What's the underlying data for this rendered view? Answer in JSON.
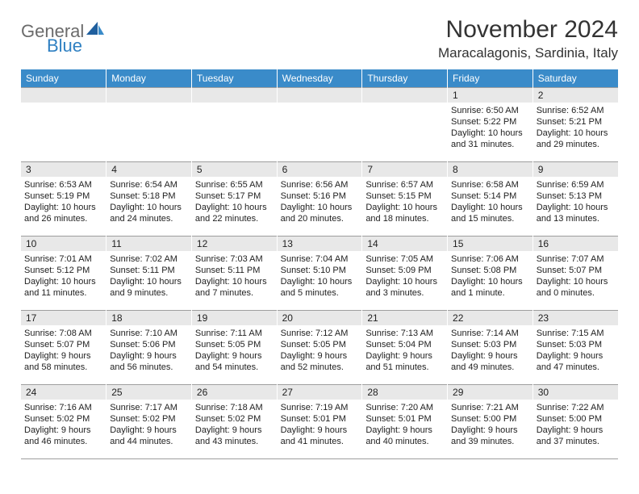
{
  "brand": {
    "text_gray": "General",
    "text_blue": "Blue"
  },
  "title": "November 2024",
  "location": "Maracalagonis, Sardinia, Italy",
  "colors": {
    "header_bg": "#3a8bc9",
    "header_text": "#ffffff",
    "daynum_bg": "#e8e8e8",
    "rule": "#9e9e9e",
    "body_text": "#222222",
    "logo_gray": "#6b6b6b",
    "logo_blue": "#2f80c2"
  },
  "weekdays": [
    "Sunday",
    "Monday",
    "Tuesday",
    "Wednesday",
    "Thursday",
    "Friday",
    "Saturday"
  ],
  "weeks": [
    [
      {
        "day": "",
        "lines": []
      },
      {
        "day": "",
        "lines": []
      },
      {
        "day": "",
        "lines": []
      },
      {
        "day": "",
        "lines": []
      },
      {
        "day": "",
        "lines": []
      },
      {
        "day": "1",
        "lines": [
          "Sunrise: 6:50 AM",
          "Sunset: 5:22 PM",
          "Daylight: 10 hours and 31 minutes."
        ]
      },
      {
        "day": "2",
        "lines": [
          "Sunrise: 6:52 AM",
          "Sunset: 5:21 PM",
          "Daylight: 10 hours and 29 minutes."
        ]
      }
    ],
    [
      {
        "day": "3",
        "lines": [
          "Sunrise: 6:53 AM",
          "Sunset: 5:19 PM",
          "Daylight: 10 hours and 26 minutes."
        ]
      },
      {
        "day": "4",
        "lines": [
          "Sunrise: 6:54 AM",
          "Sunset: 5:18 PM",
          "Daylight: 10 hours and 24 minutes."
        ]
      },
      {
        "day": "5",
        "lines": [
          "Sunrise: 6:55 AM",
          "Sunset: 5:17 PM",
          "Daylight: 10 hours and 22 minutes."
        ]
      },
      {
        "day": "6",
        "lines": [
          "Sunrise: 6:56 AM",
          "Sunset: 5:16 PM",
          "Daylight: 10 hours and 20 minutes."
        ]
      },
      {
        "day": "7",
        "lines": [
          "Sunrise: 6:57 AM",
          "Sunset: 5:15 PM",
          "Daylight: 10 hours and 18 minutes."
        ]
      },
      {
        "day": "8",
        "lines": [
          "Sunrise: 6:58 AM",
          "Sunset: 5:14 PM",
          "Daylight: 10 hours and 15 minutes."
        ]
      },
      {
        "day": "9",
        "lines": [
          "Sunrise: 6:59 AM",
          "Sunset: 5:13 PM",
          "Daylight: 10 hours and 13 minutes."
        ]
      }
    ],
    [
      {
        "day": "10",
        "lines": [
          "Sunrise: 7:01 AM",
          "Sunset: 5:12 PM",
          "Daylight: 10 hours and 11 minutes."
        ]
      },
      {
        "day": "11",
        "lines": [
          "Sunrise: 7:02 AM",
          "Sunset: 5:11 PM",
          "Daylight: 10 hours and 9 minutes."
        ]
      },
      {
        "day": "12",
        "lines": [
          "Sunrise: 7:03 AM",
          "Sunset: 5:11 PM",
          "Daylight: 10 hours and 7 minutes."
        ]
      },
      {
        "day": "13",
        "lines": [
          "Sunrise: 7:04 AM",
          "Sunset: 5:10 PM",
          "Daylight: 10 hours and 5 minutes."
        ]
      },
      {
        "day": "14",
        "lines": [
          "Sunrise: 7:05 AM",
          "Sunset: 5:09 PM",
          "Daylight: 10 hours and 3 minutes."
        ]
      },
      {
        "day": "15",
        "lines": [
          "Sunrise: 7:06 AM",
          "Sunset: 5:08 PM",
          "Daylight: 10 hours and 1 minute."
        ]
      },
      {
        "day": "16",
        "lines": [
          "Sunrise: 7:07 AM",
          "Sunset: 5:07 PM",
          "Daylight: 10 hours and 0 minutes."
        ]
      }
    ],
    [
      {
        "day": "17",
        "lines": [
          "Sunrise: 7:08 AM",
          "Sunset: 5:07 PM",
          "Daylight: 9 hours and 58 minutes."
        ]
      },
      {
        "day": "18",
        "lines": [
          "Sunrise: 7:10 AM",
          "Sunset: 5:06 PM",
          "Daylight: 9 hours and 56 minutes."
        ]
      },
      {
        "day": "19",
        "lines": [
          "Sunrise: 7:11 AM",
          "Sunset: 5:05 PM",
          "Daylight: 9 hours and 54 minutes."
        ]
      },
      {
        "day": "20",
        "lines": [
          "Sunrise: 7:12 AM",
          "Sunset: 5:05 PM",
          "Daylight: 9 hours and 52 minutes."
        ]
      },
      {
        "day": "21",
        "lines": [
          "Sunrise: 7:13 AM",
          "Sunset: 5:04 PM",
          "Daylight: 9 hours and 51 minutes."
        ]
      },
      {
        "day": "22",
        "lines": [
          "Sunrise: 7:14 AM",
          "Sunset: 5:03 PM",
          "Daylight: 9 hours and 49 minutes."
        ]
      },
      {
        "day": "23",
        "lines": [
          "Sunrise: 7:15 AM",
          "Sunset: 5:03 PM",
          "Daylight: 9 hours and 47 minutes."
        ]
      }
    ],
    [
      {
        "day": "24",
        "lines": [
          "Sunrise: 7:16 AM",
          "Sunset: 5:02 PM",
          "Daylight: 9 hours and 46 minutes."
        ]
      },
      {
        "day": "25",
        "lines": [
          "Sunrise: 7:17 AM",
          "Sunset: 5:02 PM",
          "Daylight: 9 hours and 44 minutes."
        ]
      },
      {
        "day": "26",
        "lines": [
          "Sunrise: 7:18 AM",
          "Sunset: 5:02 PM",
          "Daylight: 9 hours and 43 minutes."
        ]
      },
      {
        "day": "27",
        "lines": [
          "Sunrise: 7:19 AM",
          "Sunset: 5:01 PM",
          "Daylight: 9 hours and 41 minutes."
        ]
      },
      {
        "day": "28",
        "lines": [
          "Sunrise: 7:20 AM",
          "Sunset: 5:01 PM",
          "Daylight: 9 hours and 40 minutes."
        ]
      },
      {
        "day": "29",
        "lines": [
          "Sunrise: 7:21 AM",
          "Sunset: 5:00 PM",
          "Daylight: 9 hours and 39 minutes."
        ]
      },
      {
        "day": "30",
        "lines": [
          "Sunrise: 7:22 AM",
          "Sunset: 5:00 PM",
          "Daylight: 9 hours and 37 minutes."
        ]
      }
    ]
  ]
}
